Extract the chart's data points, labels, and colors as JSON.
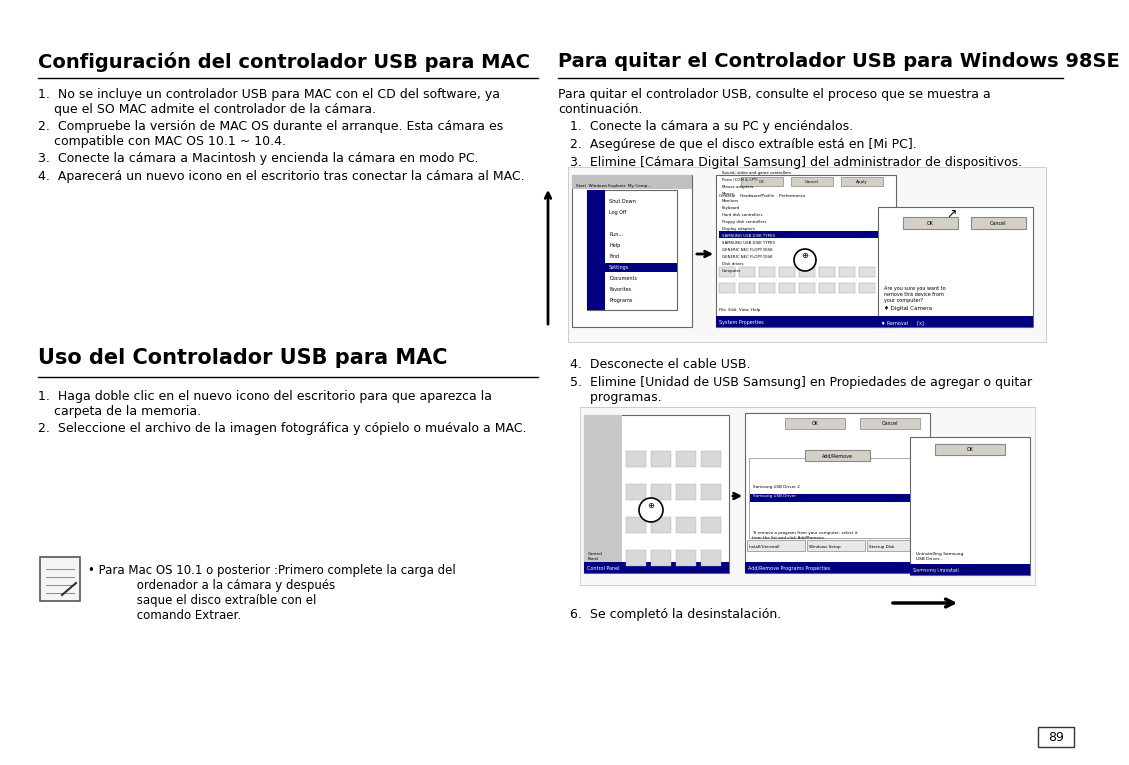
{
  "bg_color": "#ffffff",
  "page_number": "89",
  "left_title": "Configuración del controlador USB para MAC",
  "right_title": "Para quitar el Controlador USB para Windows 98SE",
  "left_section2_title": "Uso del Controlador USB para MAC",
  "left_items": [
    "1.  No se incluye un controlador USB para MAC con el CD del software, ya\n    que el SO MAC admite el controlador de la cámara.",
    "2.  Compruebe la versión de MAC OS durante el arranque. Esta cámara es\n    compatible con MAC OS 10.1 ~ 10.4.",
    "3.  Conecte la cámara a Macintosh y encienda la cámara en modo PC.",
    "4.  Aparecerá un nuevo icono en el escritorio tras conectar la cámara al MAC."
  ],
  "left_section2_items": [
    "1.  Haga doble clic en el nuevo icono del escritorio para que aparezca la\n    carpeta de la memoria.",
    "2.  Seleccione el archivo de la imagen fotográfica y cópielo o muévalo a MAC."
  ],
  "left_note": " Para Mac OS 10.1 o posterior :Primero complete la carga del\n             ordenador a la cámara y después\n             saque el disco extraíble con el\n             comando Extraer.",
  "right_intro": "Para quitar el controlador USB, consulte el proceso que se muestra a\ncontinuación.",
  "right_items1": [
    "   1.  Conecte la cámara a su PC y enciéndalos.",
    "   2.  Asegúrese de que el disco extraíble está en [Mi PC].",
    "   3.  Elimine [Cámara Digital Samsung] del administrador de dispositivos."
  ],
  "right_items2": [
    "   4.  Desconecte el cable USB.",
    "   5.  Elimine [Unidad de USB Samsung] en Propiedades de agregar o quitar\n        programas."
  ],
  "right_item6": "   6.  Se completó la desinstalación.",
  "title_fontsize": 14,
  "body_fontsize": 9,
  "note_fontsize": 8.5,
  "section2_title_fontsize": 15
}
